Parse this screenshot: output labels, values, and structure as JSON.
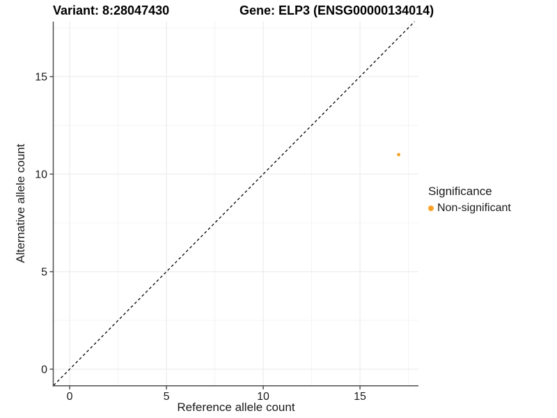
{
  "header": {
    "variant_title": "Variant: 8:28047430",
    "gene_title": "Gene: ELP3 (ENSG00000134014)"
  },
  "chart_data": {
    "type": "scatter",
    "xlabel": "Reference allele count",
    "ylabel": "Alternative allele count",
    "x_ticks": [
      "0",
      "5",
      "10",
      "15"
    ],
    "x_tick_values": [
      0,
      5,
      10,
      15
    ],
    "y_ticks": [
      "0",
      "5",
      "10",
      "15"
    ],
    "y_tick_values": [
      0,
      5,
      10,
      15
    ],
    "x_minor_tick_values": [
      2.5,
      7.5,
      12.5,
      17.5
    ],
    "y_minor_tick_values": [
      2.5,
      7.5,
      12.5,
      17.5
    ],
    "xlim": [
      -0.83,
      18.02
    ],
    "ylim": [
      -0.86,
      17.82
    ],
    "grid": "major+minor",
    "points": [
      {
        "x": 17,
        "y": 11,
        "series": "Non-significant"
      }
    ],
    "reference_line": {
      "kind": "y=x",
      "style": "dashed",
      "color": "#000000"
    },
    "legend": {
      "title": "Significance",
      "position": "right",
      "items": [
        {
          "label": "Non-significant",
          "color": "#F9A128"
        }
      ]
    },
    "colors": {
      "point": "#F9A128",
      "axis_line": "#4d4d4d",
      "tick_mark": "#333333",
      "grid_major": "#ebebeb",
      "grid_minor": "#f4f4f4",
      "tick_text": "#1a1a1a"
    }
  }
}
